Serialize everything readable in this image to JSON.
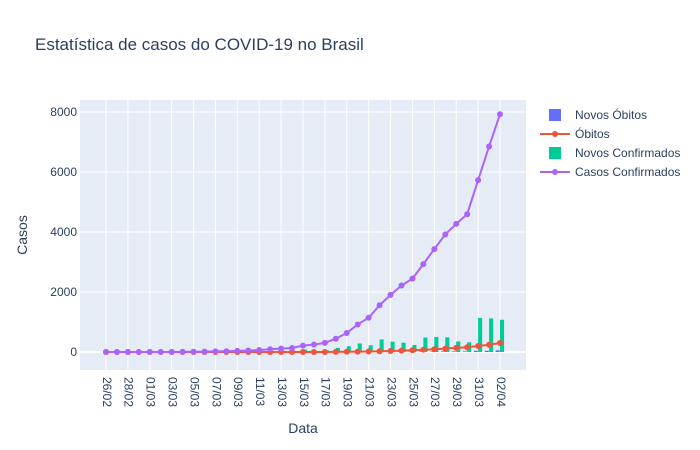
{
  "chart_data": {
    "type": "line",
    "title": "Estatística de casos do COVID-19 no Brasil",
    "xlabel": "Data",
    "ylabel": "Casos",
    "ylim": [
      -600,
      8400
    ],
    "y_ticks": [
      0,
      2000,
      4000,
      6000,
      8000
    ],
    "y_tick_labels": [
      "0",
      "2000",
      "4000",
      "6000",
      "8000"
    ],
    "grid": true,
    "legend_position": "right",
    "x": [
      "26/02",
      "27/02",
      "28/02",
      "29/02",
      "01/03",
      "02/03",
      "03/03",
      "04/03",
      "05/03",
      "06/03",
      "07/03",
      "08/03",
      "09/03",
      "10/03",
      "11/03",
      "12/03",
      "13/03",
      "14/03",
      "15/03",
      "16/03",
      "17/03",
      "18/03",
      "19/03",
      "20/03",
      "21/03",
      "22/03",
      "23/03",
      "24/03",
      "25/03",
      "26/03",
      "27/03",
      "28/03",
      "29/03",
      "30/03",
      "31/03",
      "01/04",
      "02/04"
    ],
    "x_tick_labels": [
      "26/02",
      "28/02",
      "01/03",
      "03/03",
      "05/03",
      "07/03",
      "09/03",
      "11/03",
      "13/03",
      "15/03",
      "17/03",
      "19/03",
      "21/03",
      "23/03",
      "25/03",
      "27/03",
      "29/03",
      "31/03",
      "02/04"
    ],
    "series": [
      {
        "name": "Novos Óbitos",
        "kind": "bar",
        "color": "#636efa",
        "values": [
          0,
          0,
          0,
          0,
          0,
          0,
          0,
          0,
          0,
          0,
          0,
          0,
          0,
          0,
          0,
          0,
          0,
          0,
          0,
          0,
          1,
          3,
          4,
          4,
          7,
          7,
          9,
          12,
          11,
          20,
          15,
          22,
          22,
          23,
          42,
          40,
          58
        ]
      },
      {
        "name": "Óbitos",
        "kind": "line",
        "color": "#ef553b",
        "values": [
          0,
          0,
          0,
          0,
          0,
          0,
          0,
          0,
          0,
          0,
          0,
          0,
          0,
          0,
          0,
          0,
          0,
          0,
          0,
          0,
          1,
          4,
          7,
          11,
          18,
          25,
          34,
          46,
          57,
          77,
          92,
          114,
          136,
          159,
          201,
          241,
          299
        ]
      },
      {
        "name": "Novos Confirmados",
        "kind": "bar",
        "color": "#00cc96",
        "values": [
          1,
          0,
          0,
          1,
          0,
          0,
          0,
          2,
          4,
          5,
          6,
          7,
          13,
          9,
          18,
          25,
          21,
          23,
          79,
          34,
          57,
          137,
          193,
          283,
          224,
          418,
          345,
          310,
          232,
          482,
          502,
          487,
          352,
          323,
          1138,
          1119,
          1074
        ]
      },
      {
        "name": "Casos Confirmados",
        "kind": "line",
        "color": "#ab63fa",
        "values": [
          1,
          1,
          1,
          2,
          2,
          2,
          2,
          4,
          8,
          13,
          19,
          26,
          39,
          48,
          66,
          91,
          112,
          135,
          214,
          248,
          305,
          442,
          635,
          918,
          1142,
          1560,
          1905,
          2215,
          2447,
          2929,
          3431,
          3918,
          4270,
          4593,
          5731,
          6850,
          7924
        ]
      }
    ]
  }
}
